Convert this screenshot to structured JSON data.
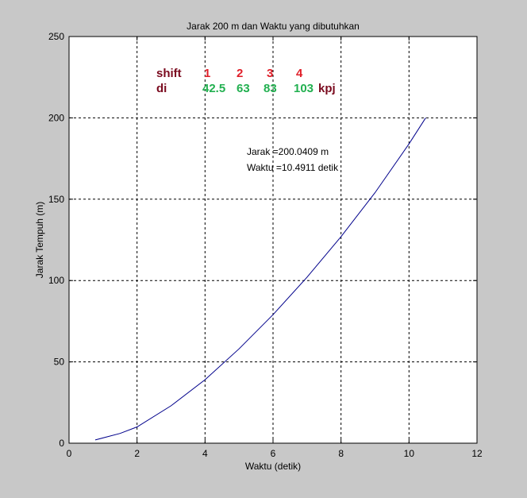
{
  "chart_data": {
    "type": "line",
    "title": "Jarak 200 m dan Waktu yang dibutuhkan",
    "xlabel": "Waktu (detik)",
    "ylabel": "Jarak Tempuh (m)",
    "xlim": [
      0,
      12
    ],
    "ylim": [
      0,
      250
    ],
    "xticks": [
      0,
      2,
      4,
      6,
      8,
      10,
      12
    ],
    "yticks": [
      0,
      50,
      100,
      150,
      200,
      250
    ],
    "grid": true,
    "series": [
      {
        "name": "jarak",
        "color": "#00008b",
        "x": [
          0.77,
          1.5,
          2,
          3,
          4,
          5,
          6,
          7,
          8,
          9,
          10,
          10.4911
        ],
        "y": [
          2,
          6,
          10,
          23,
          39,
          58,
          79,
          102,
          127,
          154,
          184,
          200.0409
        ]
      }
    ],
    "annotations": {
      "shift_label": "shift",
      "di_label": "di",
      "shifts": [
        "1",
        "2",
        "3",
        "4"
      ],
      "speeds": [
        "42.5",
        "63",
        "83",
        "103"
      ],
      "unit": "kpj",
      "result_distance": "Jarak =200.0409 m",
      "result_time": "Waktu =10.4911 detik"
    },
    "colors": {
      "label": "#7a0a1e",
      "shift_num": "#e0202a",
      "speed_num": "#22b050",
      "figure_bg": "#c8c8c8"
    }
  }
}
